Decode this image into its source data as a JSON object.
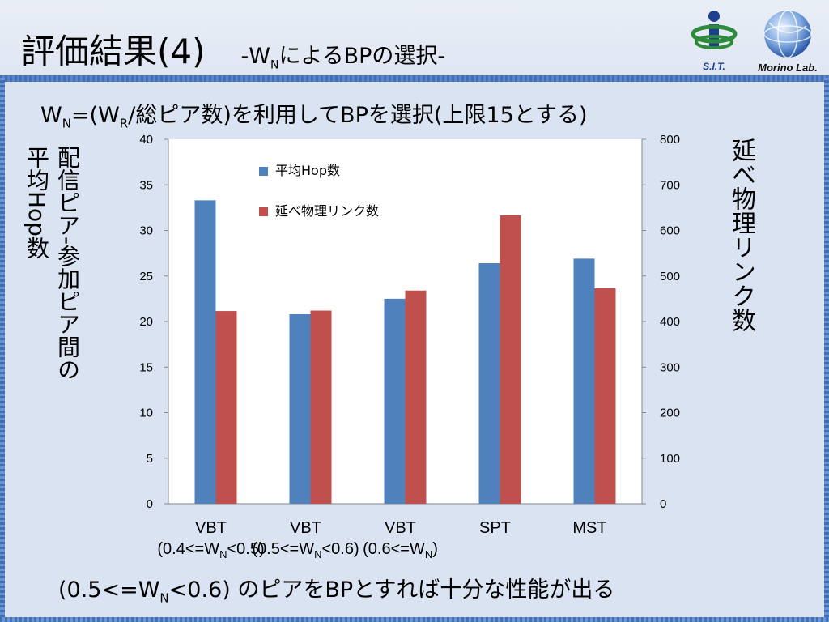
{
  "slide": {
    "title_main": "評価結果(4)",
    "title_sub_prefix": "-W",
    "title_sub_subscript": "N",
    "title_sub_suffix": "によるBPの選択-",
    "subtitle_parts": [
      "W",
      "N",
      "=(W",
      "R",
      "/総ピア数)を利用してBPを選択(上限15とする)"
    ],
    "conclusion_parts": [
      "(0.5<=W",
      "N",
      "<0.6) のピアをBPとすれば十分な性能が出る"
    ],
    "logo_left_text": "S.I.T.",
    "logo_right_text": "Morino Lab.",
    "colors": {
      "blue_bar": "#4f81bd",
      "red_bar": "#c0504d",
      "frame_blue": "#3f6fb6",
      "content_bg": "#d9e3f1"
    }
  },
  "chart_data": {
    "type": "bar",
    "categories": [
      {
        "line1": "VBT",
        "line2": [
          "(0.4<=W",
          "N",
          "<0.5)"
        ]
      },
      {
        "line1": "VBT",
        "line2": [
          "(0.5<=W",
          "N",
          "<0.6)"
        ]
      },
      {
        "line1": "VBT",
        "line2": [
          "(0.6<=W",
          "N",
          ")"
        ]
      },
      {
        "line1": "SPT",
        "line2": null
      },
      {
        "line1": "MST",
        "line2": null
      }
    ],
    "series": [
      {
        "name": "平均Hop数",
        "axis": "left",
        "color": "#4f81bd",
        "values": [
          33.3,
          20.8,
          22.5,
          26.4,
          26.9
        ]
      },
      {
        "name": "延べ物理リンク数",
        "axis": "right",
        "color": "#c0504d",
        "values": [
          423,
          424,
          468,
          633,
          473
        ]
      }
    ],
    "y_left": {
      "min": 0,
      "max": 40,
      "ticks": [
        0,
        5,
        10,
        15,
        20,
        25,
        30,
        35,
        40
      ]
    },
    "y_right": {
      "min": 0,
      "max": 800,
      "ticks": [
        0,
        100,
        200,
        300,
        400,
        500,
        600,
        700,
        800
      ]
    },
    "ylabel_left_lines": [
      "配信ピア-参加ピア間の",
      "平均Hop数"
    ],
    "ylabel_right": "延べ物理リンク数",
    "legend_position": "top-left inside"
  }
}
